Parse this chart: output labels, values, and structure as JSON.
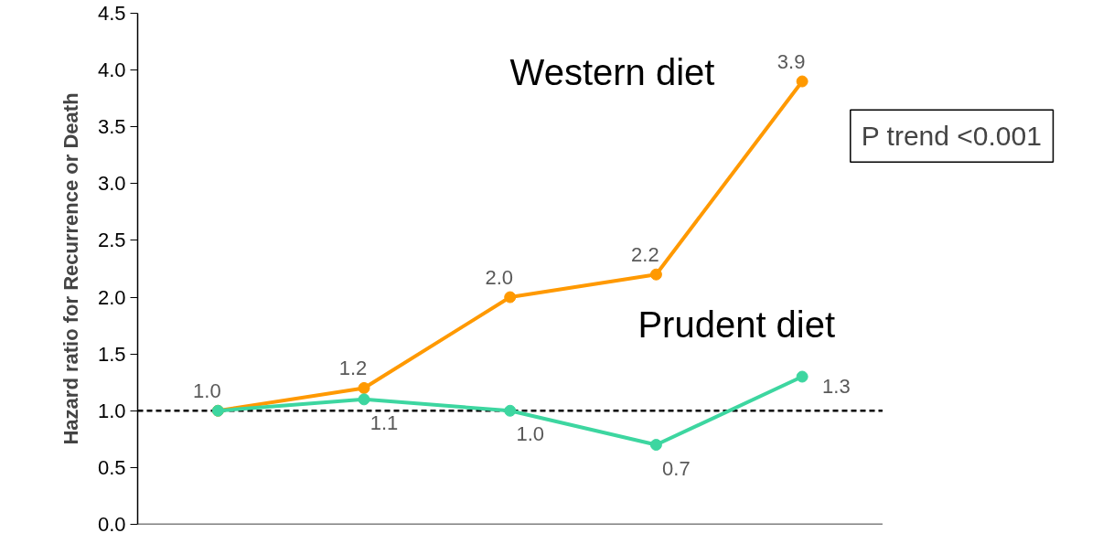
{
  "chart_data": {
    "type": "line",
    "ylabel": "Hazard ratio for Recurrence or Death",
    "categories": [
      null,
      null,
      null,
      null,
      null
    ],
    "series": [
      {
        "name": "Western diet",
        "color": "#ff9900",
        "values": [
          1.0,
          1.2,
          2.0,
          2.2,
          3.9
        ],
        "value_labels": [
          "1.0",
          "1.2",
          "2.0",
          "2.2",
          "3.9"
        ]
      },
      {
        "name": "Prudent diet",
        "color": "#3dd6a0",
        "values": [
          1.0,
          1.1,
          1.0,
          0.7,
          1.3
        ],
        "value_labels": [
          null,
          "1.1",
          "1.0",
          "0.7",
          "1.3"
        ]
      }
    ],
    "ylim": [
      0,
      4.5
    ],
    "yticks": [
      {
        "value": 0,
        "label": "0.0"
      },
      {
        "value": 0.5,
        "label": "0.5"
      },
      {
        "value": 1,
        "label": "1.0"
      },
      {
        "value": 1.5,
        "label": "1.5"
      },
      {
        "value": 2,
        "label": "2.0"
      },
      {
        "value": 2.5,
        "label": "2.5"
      },
      {
        "value": 3,
        "label": "3.0"
      },
      {
        "value": 3.5,
        "label": "3.5"
      },
      {
        "value": 4,
        "label": "4.0"
      },
      {
        "value": 4.5,
        "label": "4.5"
      }
    ],
    "ref_lines": [
      {
        "axis": "y",
        "value": 1,
        "color": "#000000",
        "line_style": "dashed"
      }
    ],
    "annotations": [
      "P trend <0.001"
    ],
    "marker": "circle",
    "line_style": "solid",
    "grid": false,
    "tick_labels": "y"
  }
}
